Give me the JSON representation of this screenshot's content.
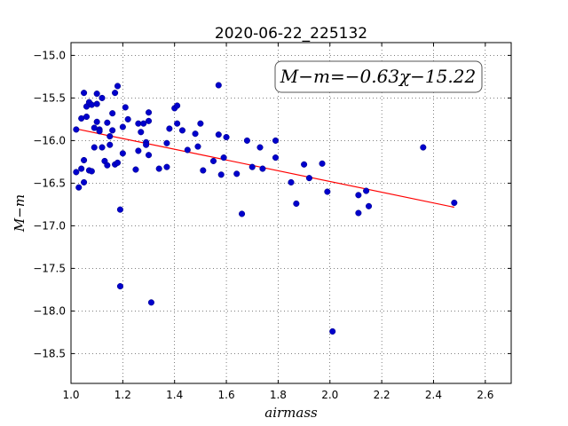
{
  "chart_data": {
    "type": "scatter",
    "title": "2020-06-22_225132",
    "xlabel": "airmass",
    "ylabel": "M−m",
    "xlim": [
      1.0,
      2.7
    ],
    "ylim": [
      -18.85,
      -14.85
    ],
    "xticks": [
      "1.0",
      "1.2",
      "1.4",
      "1.6",
      "1.8",
      "2.0",
      "2.2",
      "2.4",
      "2.6"
    ],
    "xtick_values": [
      1.0,
      1.2,
      1.4,
      1.6,
      1.8,
      2.0,
      2.2,
      2.4,
      2.6
    ],
    "yticks": [
      "−15.0",
      "−15.5",
      "−16.0",
      "−16.5",
      "−17.0",
      "−17.5",
      "−18.0",
      "−18.5"
    ],
    "ytick_values": [
      -15.0,
      -15.5,
      -16.0,
      -16.5,
      -17.0,
      -17.5,
      -18.0,
      -18.5
    ],
    "grid": true,
    "annotation": "M−m=−0.63χ−15.22",
    "annotation_position": "top-right",
    "point_color": "#0000cc",
    "fit_color": "#ff0000",
    "fit": {
      "slope": -0.63,
      "intercept": -15.22,
      "x_range": [
        1.02,
        2.48
      ]
    },
    "points": [
      {
        "x": 1.02,
        "y": -15.87
      },
      {
        "x": 1.02,
        "y": -16.37
      },
      {
        "x": 1.03,
        "y": -16.55
      },
      {
        "x": 1.04,
        "y": -15.74
      },
      {
        "x": 1.04,
        "y": -16.33
      },
      {
        "x": 1.05,
        "y": -15.44
      },
      {
        "x": 1.05,
        "y": -16.23
      },
      {
        "x": 1.05,
        "y": -16.49
      },
      {
        "x": 1.06,
        "y": -15.6
      },
      {
        "x": 1.06,
        "y": -15.72
      },
      {
        "x": 1.07,
        "y": -15.55
      },
      {
        "x": 1.07,
        "y": -16.35
      },
      {
        "x": 1.08,
        "y": -15.58
      },
      {
        "x": 1.08,
        "y": -16.36
      },
      {
        "x": 1.09,
        "y": -15.85
      },
      {
        "x": 1.09,
        "y": -16.08
      },
      {
        "x": 1.1,
        "y": -15.45
      },
      {
        "x": 1.1,
        "y": -15.57
      },
      {
        "x": 1.1,
        "y": -15.78
      },
      {
        "x": 1.11,
        "y": -15.87
      },
      {
        "x": 1.11,
        "y": -15.89
      },
      {
        "x": 1.12,
        "y": -15.5
      },
      {
        "x": 1.12,
        "y": -16.08
      },
      {
        "x": 1.13,
        "y": -16.24
      },
      {
        "x": 1.14,
        "y": -15.79
      },
      {
        "x": 1.14,
        "y": -16.29
      },
      {
        "x": 1.15,
        "y": -15.95
      },
      {
        "x": 1.15,
        "y": -16.05
      },
      {
        "x": 1.16,
        "y": -15.68
      },
      {
        "x": 1.16,
        "y": -15.88
      },
      {
        "x": 1.17,
        "y": -15.44
      },
      {
        "x": 1.17,
        "y": -16.28
      },
      {
        "x": 1.18,
        "y": -15.36
      },
      {
        "x": 1.18,
        "y": -16.26
      },
      {
        "x": 1.19,
        "y": -16.81
      },
      {
        "x": 1.19,
        "y": -17.71
      },
      {
        "x": 1.2,
        "y": -15.84
      },
      {
        "x": 1.2,
        "y": -16.15
      },
      {
        "x": 1.21,
        "y": -15.61
      },
      {
        "x": 1.22,
        "y": -15.75
      },
      {
        "x": 1.25,
        "y": -16.34
      },
      {
        "x": 1.26,
        "y": -15.8
      },
      {
        "x": 1.26,
        "y": -16.12
      },
      {
        "x": 1.27,
        "y": -15.9
      },
      {
        "x": 1.28,
        "y": -15.8
      },
      {
        "x": 1.29,
        "y": -16.02
      },
      {
        "x": 1.29,
        "y": -16.05
      },
      {
        "x": 1.3,
        "y": -15.67
      },
      {
        "x": 1.3,
        "y": -15.77
      },
      {
        "x": 1.3,
        "y": -16.17
      },
      {
        "x": 1.31,
        "y": -17.9
      },
      {
        "x": 1.34,
        "y": -16.33
      },
      {
        "x": 1.37,
        "y": -16.31
      },
      {
        "x": 1.37,
        "y": -16.03
      },
      {
        "x": 1.38,
        "y": -15.86
      },
      {
        "x": 1.4,
        "y": -15.62
      },
      {
        "x": 1.41,
        "y": -15.8
      },
      {
        "x": 1.41,
        "y": -15.59
      },
      {
        "x": 1.43,
        "y": -15.88
      },
      {
        "x": 1.45,
        "y": -16.11
      },
      {
        "x": 1.48,
        "y": -15.92
      },
      {
        "x": 1.49,
        "y": -16.07
      },
      {
        "x": 1.5,
        "y": -15.8
      },
      {
        "x": 1.51,
        "y": -16.35
      },
      {
        "x": 1.55,
        "y": -16.24
      },
      {
        "x": 1.57,
        "y": -15.93
      },
      {
        "x": 1.57,
        "y": -15.35
      },
      {
        "x": 1.58,
        "y": -16.4
      },
      {
        "x": 1.59,
        "y": -16.2
      },
      {
        "x": 1.6,
        "y": -15.96
      },
      {
        "x": 1.64,
        "y": -16.39
      },
      {
        "x": 1.66,
        "y": -16.86
      },
      {
        "x": 1.68,
        "y": -16.0
      },
      {
        "x": 1.7,
        "y": -16.31
      },
      {
        "x": 1.73,
        "y": -16.08
      },
      {
        "x": 1.74,
        "y": -16.33
      },
      {
        "x": 1.79,
        "y": -16.0
      },
      {
        "x": 1.79,
        "y": -16.2
      },
      {
        "x": 1.85,
        "y": -16.49
      },
      {
        "x": 1.87,
        "y": -16.74
      },
      {
        "x": 1.9,
        "y": -16.28
      },
      {
        "x": 1.92,
        "y": -16.44
      },
      {
        "x": 1.97,
        "y": -16.27
      },
      {
        "x": 1.99,
        "y": -16.6
      },
      {
        "x": 2.01,
        "y": -18.24
      },
      {
        "x": 2.11,
        "y": -16.64
      },
      {
        "x": 2.11,
        "y": -16.85
      },
      {
        "x": 2.14,
        "y": -16.59
      },
      {
        "x": 2.15,
        "y": -16.77
      },
      {
        "x": 2.36,
        "y": -16.08
      },
      {
        "x": 2.48,
        "y": -16.73
      }
    ]
  }
}
